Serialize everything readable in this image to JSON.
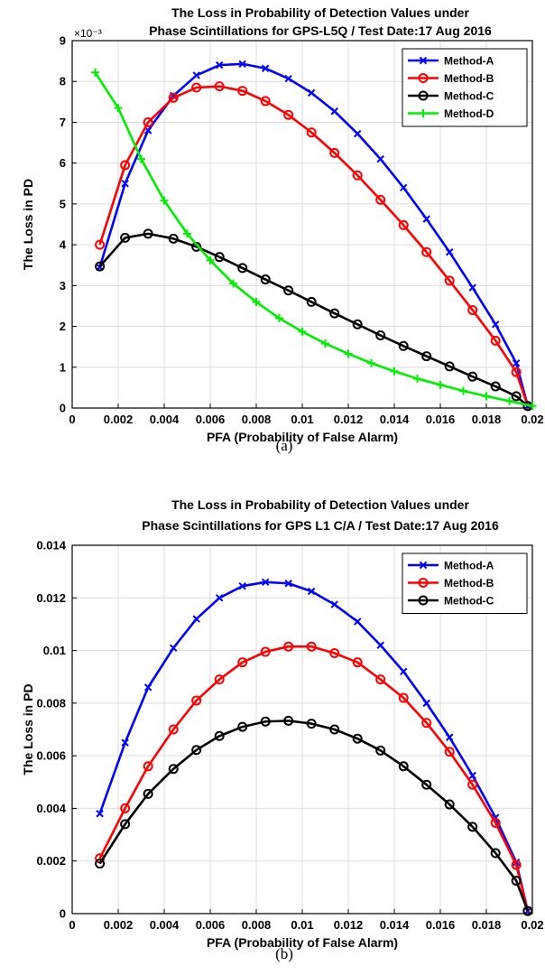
{
  "chart_data": [
    {
      "type": "line",
      "title_lines": [
        "The Loss in Probability of Detection Values under",
        "Phase Scintillations for GPS-L5Q / Test Date:17 Aug 2016"
      ],
      "xlabel": "PFA (Probability of False Alarm)",
      "ylabel": "The Loss in PD",
      "y_exponent_label": "×10⁻³",
      "caption": "(a)",
      "xlim": [
        0,
        0.02
      ],
      "ylim": [
        0,
        9
      ],
      "xticks": [
        "0",
        "0.002",
        "0.004",
        "0.006",
        "0.008",
        "0.01",
        "0.012",
        "0.014",
        "0.016",
        "0.018",
        "0.02"
      ],
      "yticks": [
        "0",
        "1",
        "2",
        "3",
        "4",
        "5",
        "6",
        "7",
        "8",
        "9"
      ],
      "grid": true,
      "legend_position": "top-right",
      "series": [
        {
          "name": "Method-A",
          "color": "#0000ff",
          "marker": "x",
          "x": [
            0.0012,
            0.0023,
            0.0033,
            0.0044,
            0.0054,
            0.0064,
            0.0074,
            0.0084,
            0.0094,
            0.0104,
            0.0114,
            0.0124,
            0.0134,
            0.0144,
            0.0154,
            0.0164,
            0.0174,
            0.0184,
            0.0193,
            0.0198
          ],
          "y": [
            3.45,
            5.5,
            6.8,
            7.65,
            8.15,
            8.4,
            8.43,
            8.32,
            8.07,
            7.72,
            7.27,
            6.72,
            6.1,
            5.4,
            4.63,
            3.82,
            2.95,
            2.05,
            1.1,
            0.05
          ]
        },
        {
          "name": "Method-B",
          "color": "#ff0000",
          "marker": "o",
          "x": [
            0.0012,
            0.0023,
            0.0033,
            0.0044,
            0.0054,
            0.0064,
            0.0074,
            0.0084,
            0.0094,
            0.0104,
            0.0114,
            0.0124,
            0.0134,
            0.0144,
            0.0154,
            0.0164,
            0.0174,
            0.0184,
            0.0193,
            0.0198
          ],
          "y": [
            4.0,
            5.95,
            7.0,
            7.6,
            7.85,
            7.88,
            7.77,
            7.52,
            7.18,
            6.75,
            6.25,
            5.7,
            5.1,
            4.48,
            3.82,
            3.12,
            2.4,
            1.65,
            0.88,
            0.05
          ]
        },
        {
          "name": "Method-C",
          "color": "#000000",
          "marker": "o",
          "x": [
            0.0012,
            0.0023,
            0.0033,
            0.0044,
            0.0054,
            0.0064,
            0.0074,
            0.0084,
            0.0094,
            0.0104,
            0.0114,
            0.0124,
            0.0134,
            0.0144,
            0.0154,
            0.0164,
            0.0174,
            0.0184,
            0.0193,
            0.0198
          ],
          "y": [
            3.47,
            4.17,
            4.27,
            4.15,
            3.95,
            3.7,
            3.43,
            3.15,
            2.88,
            2.6,
            2.32,
            2.05,
            1.78,
            1.52,
            1.27,
            1.02,
            0.77,
            0.53,
            0.29,
            0.05
          ]
        },
        {
          "name": "Method-D",
          "color": "#00ee00",
          "marker": "+",
          "x": [
            0.001,
            0.002,
            0.003,
            0.004,
            0.005,
            0.006,
            0.007,
            0.008,
            0.009,
            0.01,
            0.011,
            0.012,
            0.013,
            0.014,
            0.015,
            0.016,
            0.017,
            0.018,
            0.019,
            0.02
          ],
          "y": [
            8.22,
            7.35,
            6.1,
            5.08,
            4.27,
            3.62,
            3.05,
            2.6,
            2.2,
            1.87,
            1.58,
            1.33,
            1.1,
            0.9,
            0.72,
            0.57,
            0.42,
            0.29,
            0.17,
            0.05
          ]
        }
      ]
    },
    {
      "type": "line",
      "title_lines": [
        "The Loss in Probability of Detection Values under",
        "Phase Scintillations for GPS L1 C/A / Test Date:17 Aug 2016"
      ],
      "xlabel": "PFA (Probability of False Alarm)",
      "ylabel": "The Loss in PD",
      "caption": "(b)",
      "xlim": [
        0,
        0.02
      ],
      "ylim": [
        0,
        0.014
      ],
      "xticks": [
        "0",
        "0.002",
        "0.004",
        "0.006",
        "0.008",
        "0.01",
        "0.012",
        "0.014",
        "0.016",
        "0.018",
        "0.02"
      ],
      "yticks": [
        "0",
        "0.002",
        "0.004",
        "0.006",
        "0.008",
        "0.01",
        "0.012",
        "0.014"
      ],
      "grid": true,
      "legend_position": "top-right",
      "series": [
        {
          "name": "Method-A",
          "color": "#0000ff",
          "marker": "x",
          "x": [
            0.0012,
            0.0023,
            0.0033,
            0.0044,
            0.0054,
            0.0064,
            0.0074,
            0.0084,
            0.0094,
            0.0104,
            0.0114,
            0.0124,
            0.0134,
            0.0144,
            0.0154,
            0.0164,
            0.0174,
            0.0184,
            0.0193,
            0.0198
          ],
          "y": [
            0.0038,
            0.0065,
            0.0086,
            0.0101,
            0.0112,
            0.012,
            0.01245,
            0.0126,
            0.01255,
            0.01225,
            0.01175,
            0.0111,
            0.0102,
            0.0092,
            0.008,
            0.0067,
            0.00525,
            0.00365,
            0.00195,
            0.0001
          ]
        },
        {
          "name": "Method-B",
          "color": "#ff0000",
          "marker": "o",
          "x": [
            0.0012,
            0.0023,
            0.0033,
            0.0044,
            0.0054,
            0.0064,
            0.0074,
            0.0084,
            0.0094,
            0.0104,
            0.0114,
            0.0124,
            0.0134,
            0.0144,
            0.0154,
            0.0164,
            0.0174,
            0.0184,
            0.0193,
            0.0198
          ],
          "y": [
            0.0021,
            0.004,
            0.0056,
            0.007,
            0.0081,
            0.0089,
            0.00955,
            0.00995,
            0.01015,
            0.01015,
            0.0099,
            0.00955,
            0.0089,
            0.0082,
            0.00725,
            0.00615,
            0.0049,
            0.00345,
            0.00185,
            0.0001
          ]
        },
        {
          "name": "Method-C",
          "color": "#000000",
          "marker": "o",
          "x": [
            0.0012,
            0.0023,
            0.0033,
            0.0044,
            0.0054,
            0.0064,
            0.0074,
            0.0084,
            0.0094,
            0.0104,
            0.0114,
            0.0124,
            0.0134,
            0.0144,
            0.0154,
            0.0164,
            0.0174,
            0.0184,
            0.0193,
            0.0198
          ],
          "y": [
            0.0019,
            0.0034,
            0.00455,
            0.0055,
            0.00622,
            0.00675,
            0.0071,
            0.0073,
            0.00733,
            0.00722,
            0.007,
            0.00665,
            0.0062,
            0.0056,
            0.0049,
            0.00415,
            0.0033,
            0.0023,
            0.00125,
            0.0001
          ]
        }
      ]
    }
  ]
}
